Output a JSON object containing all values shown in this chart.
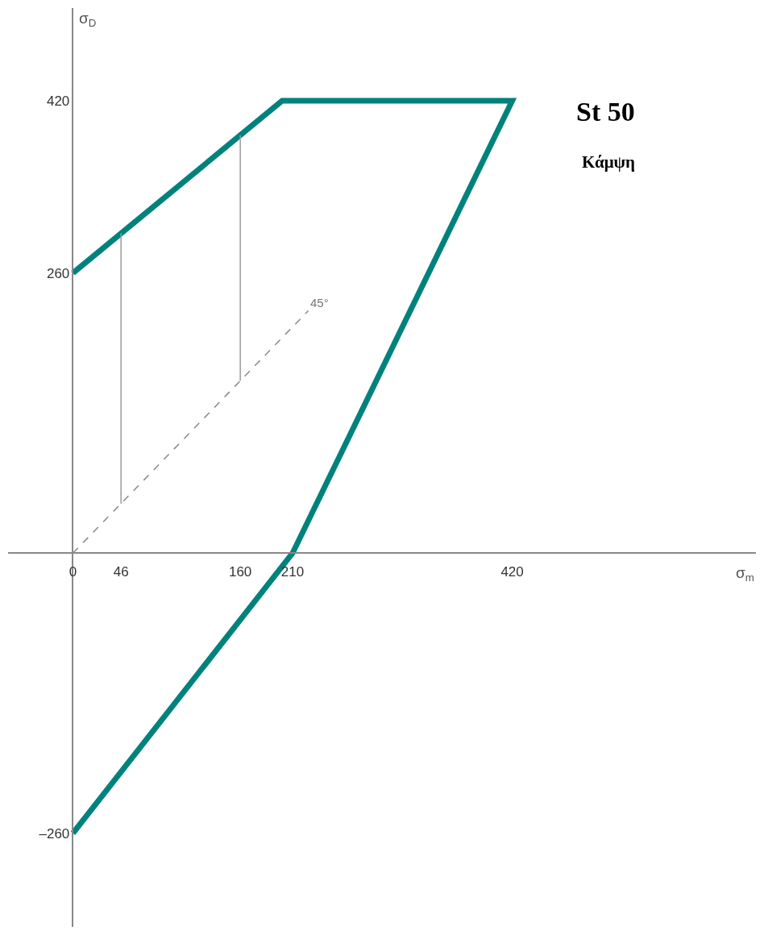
{
  "chart_data": {
    "type": "line",
    "title": "St 50",
    "subtitle": "Κάμψη",
    "xlabel": "σ$_{m}$",
    "ylabel": "σ$_{D}$",
    "series": [
      {
        "x": [
          0,
          200,
          420,
          210,
          0
        ],
        "values": [
          260,
          420,
          420,
          0,
          -260
        ],
        "color": "#00827c",
        "line_style": "solid"
      },
      {
        "x": [
          0,
          225
        ],
        "values": [
          0,
          225
        ],
        "color": "#888888",
        "line_style": "dashed"
      },
      {
        "x": [
          46,
          46
        ],
        "values": [
          46,
          297
        ],
        "color": "#999999",
        "line_style": "solid"
      },
      {
        "x": [
          160,
          160
        ],
        "values": [
          160,
          388
        ],
        "color": "#999999",
        "line_style": "solid"
      }
    ],
    "annotations": [
      {
        "text": "45°",
        "x": 225,
        "y": 225
      }
    ],
    "xlim": [
      -62,
      653
    ],
    "ylim": [
      -347,
      506
    ],
    "xticks": [
      0,
      46,
      160,
      210,
      420
    ],
    "yticks": [
      {
        "value": -260,
        "label": "–260"
      },
      260,
      420
    ],
    "marker": "none"
  }
}
